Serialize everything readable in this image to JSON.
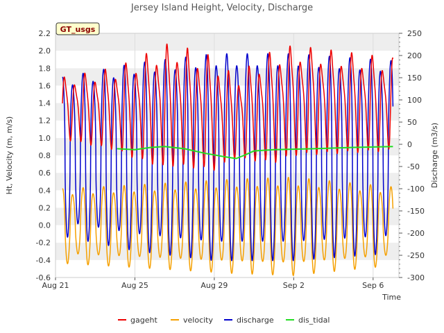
{
  "chart_data": {
    "type": "line",
    "title": "Jersey Island Height, Velocity, Discharge",
    "xlabel": "Time",
    "ylabel_left": "Ht, Velocity (m, m/s)",
    "ylabel_right": "Discharge (m3/s)",
    "badge": "GT_usgs",
    "x_range_days": [
      0,
      17.3
    ],
    "x_ticks": [
      {
        "day": 0,
        "label": "Aug 21"
      },
      {
        "day": 4,
        "label": "Aug 25"
      },
      {
        "day": 8,
        "label": "Aug 29"
      },
      {
        "day": 12,
        "label": "Sep 2"
      },
      {
        "day": 16,
        "label": "Sep 6"
      }
    ],
    "ylim_left": [
      -0.6,
      2.2
    ],
    "ylim_right": [
      -300,
      250
    ],
    "y_ticks_left": [
      "-0.6",
      "-0.4",
      "-0.2",
      "0.0",
      "0.2",
      "0.4",
      "0.6",
      "0.8",
      "1.0",
      "1.2",
      "1.4",
      "1.6",
      "1.8",
      "2.0",
      "2.2"
    ],
    "y_ticks_right": [
      "-300",
      "-250",
      "-200",
      "-150",
      "-100",
      "-50",
      "0",
      "50",
      "100",
      "150",
      "200",
      "250"
    ],
    "grid": true,
    "legend_position": "bottom",
    "series": [
      {
        "name": "gageht",
        "color": "#ee0000",
        "axis": "left",
        "x_start_day": 0.35,
        "x_end_day": 17.0,
        "period_days": 0.517,
        "mean": [
          [
            0.35,
            1.35
          ],
          [
            4.0,
            1.35
          ],
          [
            6.0,
            1.4
          ],
          [
            8.0,
            1.3
          ],
          [
            9.0,
            1.25
          ],
          [
            12.0,
            1.45
          ],
          [
            17.0,
            1.4
          ]
        ],
        "amplitude": [
          [
            0.35,
            0.3
          ],
          [
            3.0,
            0.4
          ],
          [
            5.5,
            0.6
          ],
          [
            8.0,
            0.55
          ],
          [
            9.0,
            0.4
          ],
          [
            11.0,
            0.55
          ],
          [
            17.0,
            0.45
          ]
        ]
      },
      {
        "name": "velocity",
        "color": "#f5a000",
        "axis": "left",
        "x_start_day": 0.35,
        "x_end_day": 17.0,
        "period_days": 0.517,
        "mean": [
          [
            0.35,
            0.0
          ],
          [
            17.0,
            0.0
          ]
        ],
        "amplitude": [
          [
            0.35,
            0.38
          ],
          [
            4.0,
            0.42
          ],
          [
            9.0,
            0.48
          ],
          [
            12.0,
            0.5
          ],
          [
            17.0,
            0.4
          ]
        ]
      },
      {
        "name": "discharge",
        "color": "#0000cc",
        "axis": "right",
        "x_start_day": 0.35,
        "x_end_day": 17.0,
        "period_days": 0.517,
        "mean": [
          [
            0.35,
            -25
          ],
          [
            17.0,
            -25
          ]
        ],
        "amplitude": [
          [
            0.35,
            165
          ],
          [
            4.0,
            195
          ],
          [
            8.0,
            215
          ],
          [
            12.0,
            215
          ],
          [
            17.0,
            200
          ]
        ]
      },
      {
        "name": "dis_tidal",
        "color": "#22dd22",
        "axis": "right",
        "points": [
          [
            3.1,
            -10
          ],
          [
            4.0,
            -12
          ],
          [
            4.8,
            -7
          ],
          [
            5.5,
            -5
          ],
          [
            6.5,
            -10
          ],
          [
            7.5,
            -20
          ],
          [
            8.5,
            -28
          ],
          [
            9.1,
            -32
          ],
          [
            9.5,
            -25
          ],
          [
            10.0,
            -15
          ],
          [
            11.0,
            -12
          ],
          [
            13.0,
            -10
          ],
          [
            15.0,
            -7
          ],
          [
            17.0,
            -5
          ]
        ]
      }
    ]
  }
}
